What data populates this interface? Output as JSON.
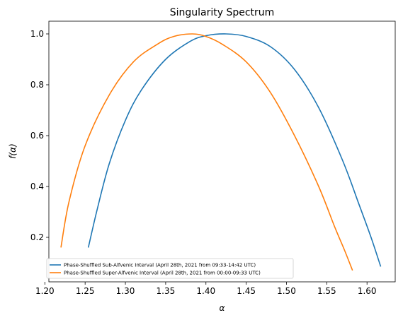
{
  "chart_data": {
    "type": "line",
    "title": "Singularity Spectrum",
    "xlabel": "α",
    "ylabel": "f(α)",
    "xlim": [
      1.205,
      1.635
    ],
    "ylim": [
      0.025,
      1.05
    ],
    "xticks": [
      1.2,
      1.25,
      1.3,
      1.35,
      1.4,
      1.45,
      1.5,
      1.55,
      1.6
    ],
    "xtick_labels": [
      "1.20",
      "1.25",
      "1.30",
      "1.35",
      "1.40",
      "1.45",
      "1.50",
      "1.55",
      "1.60"
    ],
    "yticks": [
      0.2,
      0.4,
      0.6,
      0.8,
      1.0
    ],
    "ytick_labels": [
      "0.2",
      "0.4",
      "0.6",
      "0.8",
      "1.0"
    ],
    "grid": false,
    "legend_position": "lower-left",
    "series": [
      {
        "name": "Phase-Shuffled Sub-Alfvenic Interval (April 28th, 2021 from 09:33-14:42 UTC)",
        "color": "#1f77b4",
        "x": [
          1.254,
          1.265,
          1.28,
          1.3,
          1.32,
          1.35,
          1.38,
          1.4,
          1.425,
          1.45,
          1.48,
          1.51,
          1.54,
          1.57,
          1.59,
          1.605,
          1.617
        ],
        "y": [
          0.16,
          0.31,
          0.49,
          0.66,
          0.78,
          0.9,
          0.97,
          0.993,
          1.0,
          0.99,
          0.95,
          0.86,
          0.71,
          0.5,
          0.33,
          0.2,
          0.085
        ]
      },
      {
        "name": "Phase-Shuffled Super-Alfvenic Interval (April 28th, 2021 from 00:00-09:33 UTC)",
        "color": "#ff7f0e",
        "x": [
          1.22,
          1.23,
          1.25,
          1.28,
          1.31,
          1.34,
          1.36,
          1.383,
          1.4,
          1.42,
          1.45,
          1.48,
          1.51,
          1.54,
          1.56,
          1.572,
          1.582
        ],
        "y": [
          0.16,
          0.34,
          0.56,
          0.76,
          0.89,
          0.96,
          0.99,
          1.0,
          0.99,
          0.96,
          0.89,
          0.77,
          0.6,
          0.4,
          0.24,
          0.15,
          0.07
        ]
      }
    ]
  }
}
